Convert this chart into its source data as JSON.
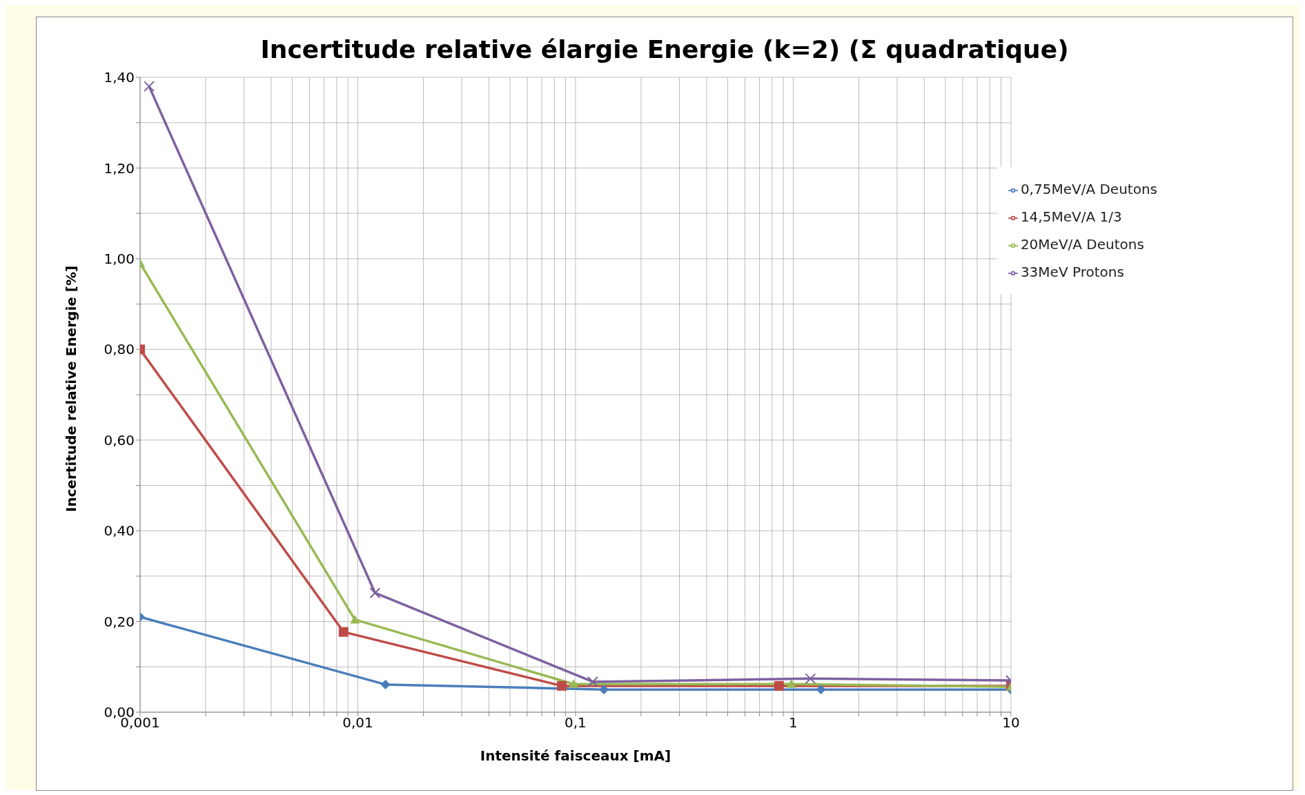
{
  "chart_data": {
    "type": "line",
    "title": "Incertitude relative élargie Energie (k=2) (Σ quadratique)",
    "xlabel": "Intensité faisceaux [mA]",
    "ylabel": "Incertitude relative Energie [%]",
    "log": "x",
    "grid": true,
    "legend": "top right",
    "xlim": [
      0.001,
      10
    ],
    "ylim": [
      0,
      1.4
    ],
    "xticks": [
      {
        "value": 0.001,
        "label": "0,001"
      },
      {
        "value": 0.002,
        "label": null
      },
      {
        "value": 0.003,
        "label": null
      },
      {
        "value": 0.004,
        "label": null
      },
      {
        "value": 0.005,
        "label": null
      },
      {
        "value": 0.006,
        "label": null
      },
      {
        "value": 0.007,
        "label": null
      },
      {
        "value": 0.008,
        "label": null
      },
      {
        "value": 0.009,
        "label": null
      },
      {
        "value": 0.01,
        "label": "0,01"
      },
      {
        "value": 0.02,
        "label": null
      },
      {
        "value": 0.03,
        "label": null
      },
      {
        "value": 0.04,
        "label": null
      },
      {
        "value": 0.05,
        "label": null
      },
      {
        "value": 0.06,
        "label": null
      },
      {
        "value": 0.07,
        "label": null
      },
      {
        "value": 0.08,
        "label": null
      },
      {
        "value": 0.09,
        "label": null
      },
      {
        "value": 0.1,
        "label": "0,1"
      },
      {
        "value": 0.2,
        "label": null
      },
      {
        "value": 0.3,
        "label": null
      },
      {
        "value": 0.4,
        "label": null
      },
      {
        "value": 0.5,
        "label": null
      },
      {
        "value": 0.6,
        "label": null
      },
      {
        "value": 0.7,
        "label": null
      },
      {
        "value": 0.8,
        "label": null
      },
      {
        "value": 0.9,
        "label": null
      },
      1,
      {
        "value": 2,
        "label": null
      },
      {
        "value": 3,
        "label": null
      },
      {
        "value": 4,
        "label": null
      },
      {
        "value": 5,
        "label": null
      },
      {
        "value": 6,
        "label": null
      },
      {
        "value": 7,
        "label": null
      },
      {
        "value": 8,
        "label": null
      },
      {
        "value": 9,
        "label": null
      },
      10
    ],
    "yticks": [
      {
        "value": 0,
        "label": "0,00"
      },
      {
        "value": 0.1,
        "label": null
      },
      {
        "value": 0.2,
        "label": "0,20"
      },
      {
        "value": 0.3,
        "label": null
      },
      {
        "value": 0.4,
        "label": "0,40"
      },
      {
        "value": 0.5,
        "label": null
      },
      {
        "value": 0.6,
        "label": "0,60"
      },
      {
        "value": 0.7,
        "label": null
      },
      {
        "value": 0.8,
        "label": "0,80"
      },
      {
        "value": 0.9,
        "label": null
      },
      {
        "value": 1,
        "label": "1,00"
      },
      {
        "value": 1.1,
        "label": null
      },
      {
        "value": 1.2,
        "label": "1,20"
      },
      {
        "value": 1.3,
        "label": null
      },
      {
        "value": 1.4,
        "label": "1,40"
      }
    ],
    "series": [
      {
        "name": "0,75MeV/A Deutons",
        "color": "#4a7ebb",
        "marker": "diamond",
        "x": [
          0.001,
          0.0134,
          0.135,
          1.34,
          10
        ],
        "values": [
          0.21,
          0.061,
          0.05,
          0.05,
          0.05
        ]
      },
      {
        "name": "14,5MeV/A 1/3",
        "color": "#be4b48",
        "marker": "square",
        "x": [
          0.001,
          0.0086,
          0.0865,
          0.86,
          10
        ],
        "values": [
          0.8,
          0.177,
          0.058,
          0.058,
          0.058
        ]
      },
      {
        "name": "20MeV/A Deutons",
        "color": "#98b954",
        "marker": "triangle",
        "x": [
          0.001,
          0.0097,
          0.098,
          0.98,
          10
        ],
        "values": [
          0.99,
          0.204,
          0.062,
          0.062,
          0.056
        ]
      },
      {
        "name": "33MeV Protons",
        "color": "#7d60a0",
        "marker": "cross",
        "x": [
          0.0011,
          0.012,
          0.12,
          1.2,
          10
        ],
        "values": [
          1.38,
          0.263,
          0.067,
          0.074,
          0.07
        ]
      }
    ]
  }
}
